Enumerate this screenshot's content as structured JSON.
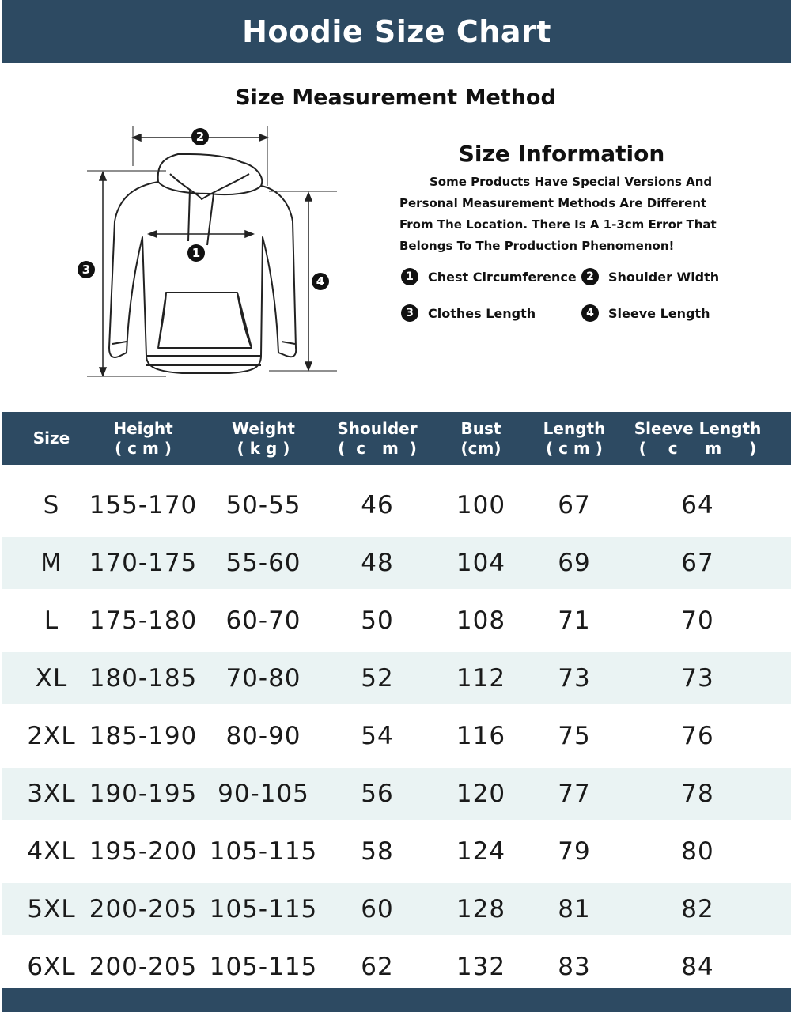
{
  "header": {
    "title": "Hoodie Size Chart"
  },
  "method": {
    "title": "Size Measurement Method",
    "markers": [
      "1",
      "2",
      "3",
      "4"
    ]
  },
  "info": {
    "title": "Size Information",
    "text": "Some Products Have Special Versions And Personal Measurement Methods Are Different From The Location. There Is A 1-3cm Error That Belongs To The Production Phenomenon!",
    "legend": [
      {
        "num": "1",
        "label": "Chest Circumference"
      },
      {
        "num": "2",
        "label": "Shoulder Width"
      },
      {
        "num": "3",
        "label": "Clothes Length"
      },
      {
        "num": "4",
        "label": "Sleeve Length"
      }
    ]
  },
  "colors": {
    "header_bg": "#2d4a62",
    "stripe": "#eaf3f3"
  },
  "table": {
    "columns": [
      {
        "name": "Size",
        "unit": ""
      },
      {
        "name": "Height",
        "unit": "( c m )"
      },
      {
        "name": "Weight",
        "unit": "( k g )"
      },
      {
        "name": "Shoulder",
        "unit": "(  c   m  )"
      },
      {
        "name": "Bust",
        "unit": "(cm)"
      },
      {
        "name": "Length",
        "unit": "( c m )"
      },
      {
        "name": "Sleeve Length",
        "unit": "(    c     m     )"
      }
    ],
    "rows": [
      [
        "S",
        "155-170",
        "50-55",
        "46",
        "100",
        "67",
        "64"
      ],
      [
        "M",
        "170-175",
        "55-60",
        "48",
        "104",
        "69",
        "67"
      ],
      [
        "L",
        "175-180",
        "60-70",
        "50",
        "108",
        "71",
        "70"
      ],
      [
        "XL",
        "180-185",
        "70-80",
        "52",
        "112",
        "73",
        "73"
      ],
      [
        "2XL",
        "185-190",
        "80-90",
        "54",
        "116",
        "75",
        "76"
      ],
      [
        "3XL",
        "190-195",
        "90-105",
        "56",
        "120",
        "77",
        "78"
      ],
      [
        "4XL",
        "195-200",
        "105-115",
        "58",
        "124",
        "79",
        "80"
      ],
      [
        "5XL",
        "200-205",
        "105-115",
        "60",
        "128",
        "81",
        "82"
      ],
      [
        "6XL",
        "200-205",
        "105-115",
        "62",
        "132",
        "83",
        "84"
      ]
    ]
  }
}
